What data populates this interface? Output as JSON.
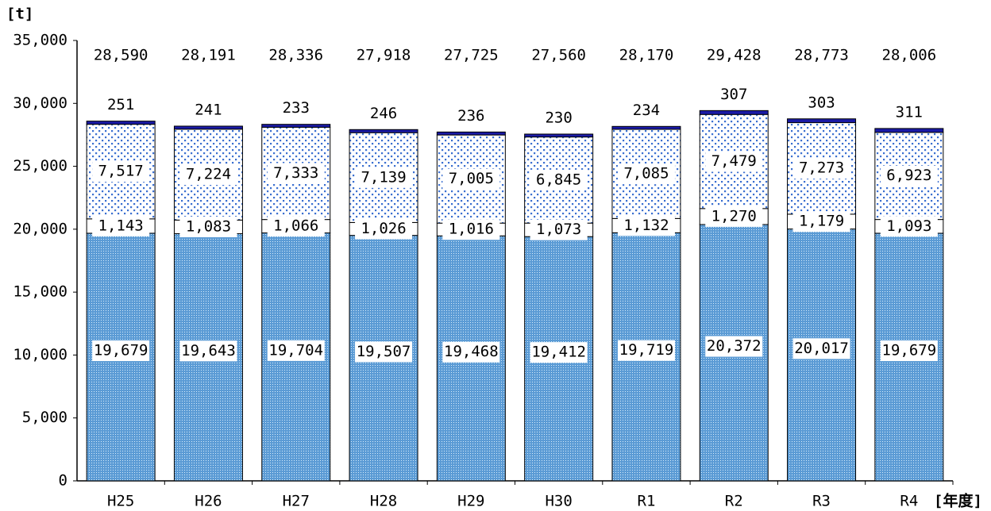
{
  "chart_data": {
    "type": "stacked-bar",
    "y_label": "[t]",
    "x_label": "[年度]",
    "categories": [
      "H25",
      "H26",
      "H27",
      "H28",
      "H29",
      "H30",
      "R1",
      "R2",
      "R3",
      "R4"
    ],
    "series": [
      {
        "color": "#5b9bd5",
        "pattern": "fine-dots",
        "values": [
          19679,
          19643,
          19704,
          19507,
          19468,
          19412,
          19719,
          20372,
          20017,
          19679
        ],
        "value_labels": [
          "19,679",
          "19,643",
          "19,704",
          "19,507",
          "19,468",
          "19,412",
          "19,719",
          "20,372",
          "20,017",
          "19,679"
        ]
      },
      {
        "color": "#ffffff",
        "values": [
          1143,
          1083,
          1066,
          1026,
          1016,
          1073,
          1132,
          1270,
          1179,
          1093
        ],
        "value_labels": [
          "1,143",
          "1,083",
          "1,066",
          "1,026",
          "1,016",
          "1,073",
          "1,132",
          "1,270",
          "1,179",
          "1,093"
        ]
      },
      {
        "color": "#3a6fd0",
        "pattern": "sparse-dots",
        "values": [
          7517,
          7224,
          7333,
          7139,
          7005,
          6845,
          7085,
          7479,
          7273,
          6923
        ],
        "value_labels": [
          "7,517",
          "7,224",
          "7,333",
          "7,139",
          "7,005",
          "6,845",
          "7,085",
          "7,479",
          "7,273",
          "6,923"
        ]
      },
      {
        "color": "#1a1aa6",
        "values": [
          251,
          241,
          233,
          246,
          236,
          230,
          234,
          307,
          303,
          311
        ]
      }
    ],
    "total_labels": [
      "28,590",
      "28,191",
      "28,336",
      "27,918",
      "27,725",
      "27,560",
      "28,170",
      "29,428",
      "28,773",
      "28,006"
    ],
    "ylim": [
      0,
      35000
    ],
    "yticks": [
      0,
      {
        "value": 5000,
        "label": "5,000"
      },
      {
        "value": 10000,
        "label": "10,000"
      },
      {
        "value": 15000,
        "label": "15,000"
      },
      {
        "value": 20000,
        "label": "20,000"
      },
      {
        "value": 25000,
        "label": "25,000"
      },
      {
        "value": 30000,
        "label": "30,000"
      },
      {
        "value": 35000,
        "label": "35,000"
      }
    ],
    "grid": false
  }
}
